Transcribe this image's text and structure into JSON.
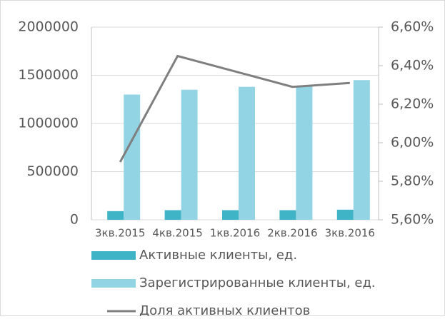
{
  "chart_data": {
    "type": "bar-line",
    "categories": [
      "3кв.2015",
      "4кв.2015",
      "1кв.2016",
      "2кв.2016",
      "3кв.2016"
    ],
    "series": [
      {
        "name": "Активные клиенты, ед.",
        "type": "bar",
        "color": "#3fb4c6",
        "values": [
          90000,
          100000,
          100000,
          100000,
          105000
        ]
      },
      {
        "name": "Зарегистрированные клиенты, ед.",
        "type": "bar",
        "color": "#92d4e4",
        "values": [
          1300000,
          1350000,
          1380000,
          1390000,
          1450000
        ]
      },
      {
        "name": "Доля активных клиентов",
        "type": "line",
        "axis": "y2",
        "color": "#7f7f7f",
        "values": [
          5.9,
          6.45,
          6.37,
          6.29,
          6.31
        ]
      }
    ],
    "ylim": [
      0,
      2000000
    ],
    "yticks": [
      0,
      500000,
      1000000,
      1500000,
      2000000
    ],
    "y2lim": [
      5.6,
      6.6
    ],
    "y2ticks": [
      {
        "value": 5.6,
        "label": "5,60%"
      },
      {
        "value": 5.8,
        "label": "5,80%"
      },
      {
        "value": 6.0,
        "label": "6,00%"
      },
      {
        "value": 6.2,
        "label": "6,20%"
      },
      {
        "value": 6.4,
        "label": "6,40%"
      },
      {
        "value": 6.6,
        "label": "6,60%"
      }
    ],
    "grid": true
  }
}
